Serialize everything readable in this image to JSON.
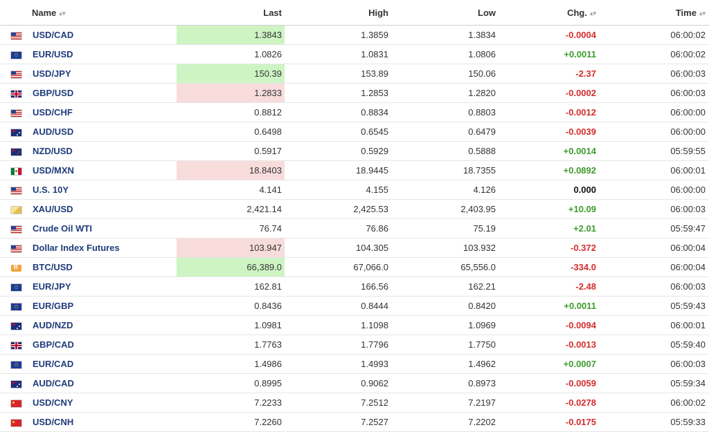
{
  "columns": {
    "name": "Name",
    "last": "Last",
    "high": "High",
    "low": "Low",
    "chg": "Chg.",
    "time": "Time"
  },
  "rows": [
    {
      "name": "USD/CAD",
      "flag": "us",
      "last": "1.3843",
      "high": "1.3859",
      "low": "1.3834",
      "chg": "-0.0004",
      "time": "06:00:02",
      "hl": "up",
      "dir": "neg",
      "status": "open"
    },
    {
      "name": "EUR/USD",
      "flag": "eu",
      "last": "1.0826",
      "high": "1.0831",
      "low": "1.0806",
      "chg": "+0.0011",
      "time": "06:00:02",
      "hl": "",
      "dir": "pos",
      "status": "open"
    },
    {
      "name": "USD/JPY",
      "flag": "us",
      "last": "150.39",
      "high": "153.89",
      "low": "150.06",
      "chg": "-2.37",
      "time": "06:00:03",
      "hl": "up",
      "dir": "neg",
      "status": "open"
    },
    {
      "name": "GBP/USD",
      "flag": "gb",
      "last": "1.2833",
      "high": "1.2853",
      "low": "1.2820",
      "chg": "-0.0002",
      "time": "06:00:03",
      "hl": "down",
      "dir": "neg",
      "status": "open"
    },
    {
      "name": "USD/CHF",
      "flag": "us",
      "last": "0.8812",
      "high": "0.8834",
      "low": "0.8803",
      "chg": "-0.0012",
      "time": "06:00:00",
      "hl": "",
      "dir": "neg",
      "status": "open"
    },
    {
      "name": "AUD/USD",
      "flag": "au",
      "last": "0.6498",
      "high": "0.6545",
      "low": "0.6479",
      "chg": "-0.0039",
      "time": "06:00:00",
      "hl": "",
      "dir": "neg",
      "status": "open"
    },
    {
      "name": "NZD/USD",
      "flag": "nz",
      "last": "0.5917",
      "high": "0.5929",
      "low": "0.5888",
      "chg": "+0.0014",
      "time": "05:59:55",
      "hl": "",
      "dir": "pos",
      "status": "open"
    },
    {
      "name": "USD/MXN",
      "flag": "mx",
      "last": "18.8403",
      "high": "18.9445",
      "low": "18.7355",
      "chg": "+0.0892",
      "time": "06:00:01",
      "hl": "down",
      "dir": "pos",
      "status": "open"
    },
    {
      "name": "U.S. 10Y",
      "flag": "us",
      "last": "4.141",
      "high": "4.155",
      "low": "4.126",
      "chg": "0.000",
      "time": "06:00:00",
      "hl": "",
      "dir": "zero",
      "status": "closed"
    },
    {
      "name": "XAU/USD",
      "flag": "gold",
      "last": "2,421.14",
      "high": "2,425.53",
      "low": "2,403.95",
      "chg": "+10.09",
      "time": "06:00:03",
      "hl": "",
      "dir": "pos",
      "status": "open"
    },
    {
      "name": "Crude Oil WTI",
      "flag": "us",
      "last": "76.74",
      "high": "76.86",
      "low": "75.19",
      "chg": "+2.01",
      "time": "05:59:47",
      "hl": "",
      "dir": "pos",
      "status": "open"
    },
    {
      "name": "Dollar Index Futures",
      "flag": "us",
      "last": "103.947",
      "high": "104.305",
      "low": "103.932",
      "chg": "-0.372",
      "time": "06:00:04",
      "hl": "down",
      "dir": "neg",
      "status": "open"
    },
    {
      "name": "BTC/USD",
      "flag": "btc",
      "last": "66,389.0",
      "high": "67,066.0",
      "low": "65,556.0",
      "chg": "-334.0",
      "time": "06:00:04",
      "hl": "up",
      "dir": "neg",
      "status": "open"
    },
    {
      "name": "EUR/JPY",
      "flag": "eu",
      "last": "162.81",
      "high": "166.56",
      "low": "162.21",
      "chg": "-2.48",
      "time": "06:00:03",
      "hl": "",
      "dir": "neg",
      "status": "open"
    },
    {
      "name": "EUR/GBP",
      "flag": "eu",
      "last": "0.8436",
      "high": "0.8444",
      "low": "0.8420",
      "chg": "+0.0011",
      "time": "05:59:43",
      "hl": "",
      "dir": "pos",
      "status": "open"
    },
    {
      "name": "AUD/NZD",
      "flag": "au",
      "last": "1.0981",
      "high": "1.1098",
      "low": "1.0969",
      "chg": "-0.0094",
      "time": "06:00:01",
      "hl": "",
      "dir": "neg",
      "status": "open"
    },
    {
      "name": "GBP/CAD",
      "flag": "gb",
      "last": "1.7763",
      "high": "1.7796",
      "low": "1.7750",
      "chg": "-0.0013",
      "time": "05:59:40",
      "hl": "",
      "dir": "neg",
      "status": "open"
    },
    {
      "name": "EUR/CAD",
      "flag": "eu",
      "last": "1.4986",
      "high": "1.4993",
      "low": "1.4962",
      "chg": "+0.0007",
      "time": "06:00:03",
      "hl": "",
      "dir": "pos",
      "status": "open"
    },
    {
      "name": "AUD/CAD",
      "flag": "au",
      "last": "0.8995",
      "high": "0.9062",
      "low": "0.8973",
      "chg": "-0.0059",
      "time": "05:59:34",
      "hl": "",
      "dir": "neg",
      "status": "open"
    },
    {
      "name": "USD/CNY",
      "flag": "cn",
      "last": "7.2233",
      "high": "7.2512",
      "low": "7.2197",
      "chg": "-0.0278",
      "time": "06:00:02",
      "hl": "",
      "dir": "neg",
      "status": "open"
    },
    {
      "name": "USD/CNH",
      "flag": "cn",
      "last": "7.2260",
      "high": "7.2527",
      "low": "7.2202",
      "chg": "-0.0175",
      "time": "05:59:33",
      "hl": "",
      "dir": "neg",
      "status": "open"
    }
  ],
  "colors": {
    "name_link": "#1f3b7a",
    "positive": "#3c9b2c",
    "negative": "#d52c2c",
    "flash_up": "#cef4c4",
    "flash_down": "#f8dcdc",
    "clock_open": "#6fb33c",
    "clock_closed": "#d54c4c"
  },
  "icons": {
    "sort": "sort-icon",
    "status_open": "clock-icon",
    "status_closed": "clock-closed-icon"
  }
}
